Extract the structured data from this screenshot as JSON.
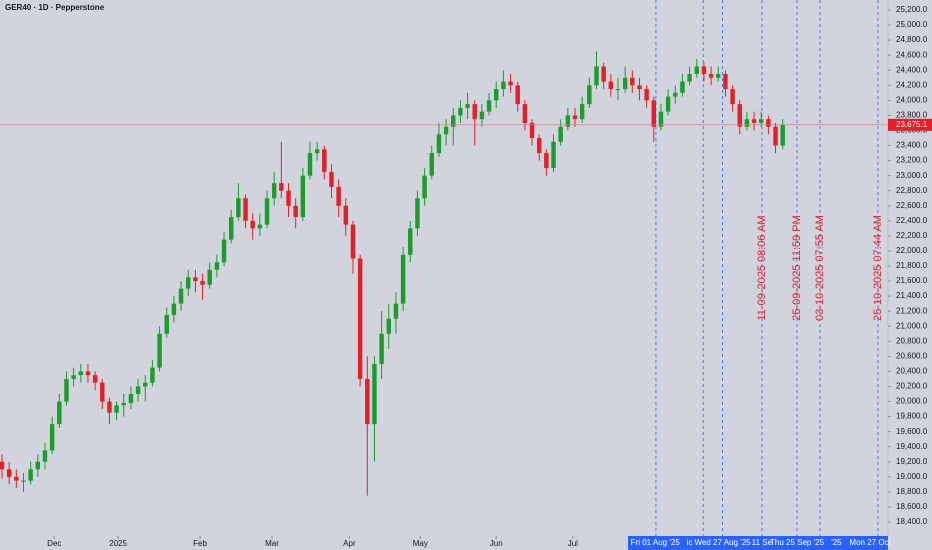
{
  "chart_data": {
    "type": "candlestick",
    "title": "GER40 · 1D · Pepperstone",
    "up_color": "#1c9b2f",
    "down_color": "#e3202a",
    "xlim": [
      -0.28,
      123.7
    ],
    "ylim": [
      18214,
      25333
    ],
    "xticks": [
      {
        "value": 7.3,
        "label": "Dec"
      },
      {
        "value": 16.2,
        "label": "2025"
      },
      {
        "value": 27.65,
        "label": "Feb"
      },
      {
        "value": 37.7,
        "label": "Mar"
      },
      {
        "value": 48.5,
        "label": "Apr"
      },
      {
        "value": 58.4,
        "label": "May"
      },
      {
        "value": 69,
        "label": "Jun"
      },
      {
        "value": 79.7,
        "label": "Jul"
      }
    ],
    "yticks": [
      {
        "value": 25200,
        "label": "25,200.0"
      },
      {
        "value": 25000,
        "label": "25,000.0"
      },
      {
        "value": 24800,
        "label": "24,800.0"
      },
      {
        "value": 24600,
        "label": "24,600.0"
      },
      {
        "value": 24400,
        "label": "24,400.0"
      },
      {
        "value": 24200,
        "label": "24,200.0"
      },
      {
        "value": 24000,
        "label": "24,000.0"
      },
      {
        "value": 23800,
        "label": "23,800.0"
      },
      {
        "value": 23600,
        "label": "23,600.0"
      },
      {
        "value": 23400,
        "label": "23,400.0"
      },
      {
        "value": 23200,
        "label": "23,200.0"
      },
      {
        "value": 23000,
        "label": "23,000.0"
      },
      {
        "value": 22800,
        "label": "22,800.0"
      },
      {
        "value": 22600,
        "label": "22,600.0"
      },
      {
        "value": 22400,
        "label": "22,400.0"
      },
      {
        "value": 22200,
        "label": "22,200.0"
      },
      {
        "value": 22000,
        "label": "22,000.0"
      },
      {
        "value": 21800,
        "label": "21,800.0"
      },
      {
        "value": 21600,
        "label": "21,600.0"
      },
      {
        "value": 21400,
        "label": "21,400.0"
      },
      {
        "value": 21200,
        "label": "21,200.0"
      },
      {
        "value": 21000,
        "label": "21,000.0"
      },
      {
        "value": 20800,
        "label": "20,800.0"
      },
      {
        "value": 20600,
        "label": "20,600.0"
      },
      {
        "value": 20400,
        "label": "20,400.0"
      },
      {
        "value": 20200,
        "label": "20,200.0"
      },
      {
        "value": 20000,
        "label": "20,000.0"
      },
      {
        "value": 19800,
        "label": "19,800.0"
      },
      {
        "value": 19600,
        "label": "19,600.0"
      },
      {
        "value": 19400,
        "label": "19,400.0"
      },
      {
        "value": 19200,
        "label": "19,200.0"
      },
      {
        "value": 19000,
        "label": "19,000.0"
      },
      {
        "value": 18800,
        "label": "18,800.0"
      },
      {
        "value": 18600,
        "label": "18,600.0"
      },
      {
        "value": 18400,
        "label": "18,400.0"
      }
    ],
    "price_line": {
      "value": 23675.1,
      "label": "23,675.1"
    },
    "vlines": [
      91.3,
      97.9,
      100.6,
      106.1,
      111.0,
      114.2,
      122.3
    ],
    "markers": [
      {
        "value": 106.1,
        "label": "11-09-2025 08:06 AM"
      },
      {
        "value": 111.0,
        "label": "25-09-2025 11:59 PM"
      },
      {
        "value": 114.2,
        "label": "03-10-2025 07:55 AM"
      },
      {
        "value": 122.3,
        "label": "25-10-2025 07:44 AM"
      }
    ],
    "time_labels": [
      {
        "value": 91.2,
        "label": "Fri 01 Aug '25"
      },
      {
        "value": 96.0,
        "label": "ic"
      },
      {
        "value": 100.6,
        "label": "Wed 27 Aug '25"
      },
      {
        "value": 106.1,
        "label": "11 Se"
      },
      {
        "value": 111.0,
        "label": "Thu 25 Sep '25"
      },
      {
        "value": 116.5,
        "label": "'25"
      },
      {
        "value": 121.2,
        "label": "Mon 27 Oct"
      }
    ],
    "candles": [
      [
        19200,
        19300,
        18980,
        19100
      ],
      [
        19100,
        19200,
        18900,
        19000
      ],
      [
        19000,
        19100,
        18850,
        18950
      ],
      [
        18950,
        19050,
        18800,
        18950
      ],
      [
        18950,
        19200,
        18900,
        19100
      ],
      [
        19100,
        19300,
        19000,
        19200
      ],
      [
        19200,
        19450,
        19100,
        19350
      ],
      [
        19350,
        19800,
        19300,
        19700
      ],
      [
        19700,
        20100,
        19650,
        20000
      ],
      [
        20000,
        20400,
        19950,
        20300
      ],
      [
        20300,
        20450,
        20200,
        20350
      ],
      [
        20350,
        20500,
        20250,
        20400
      ],
      [
        20400,
        20500,
        20250,
        20350
      ],
      [
        20350,
        20400,
        20150,
        20250
      ],
      [
        20250,
        20300,
        19900,
        20000
      ],
      [
        20000,
        20050,
        19700,
        19850
      ],
      [
        19850,
        20000,
        19750,
        19950
      ],
      [
        19950,
        20100,
        19800,
        19980
      ],
      [
        19980,
        20200,
        19900,
        20100
      ],
      [
        20100,
        20300,
        20000,
        20200
      ],
      [
        20200,
        20350,
        20000,
        20250
      ],
      [
        20250,
        20550,
        20200,
        20450
      ],
      [
        20450,
        21000,
        20400,
        20900
      ],
      [
        20900,
        21250,
        20850,
        21150
      ],
      [
        21150,
        21400,
        21050,
        21300
      ],
      [
        21300,
        21600,
        21200,
        21500
      ],
      [
        21500,
        21750,
        21400,
        21650
      ],
      [
        21650,
        21750,
        21450,
        21600
      ],
      [
        21600,
        21700,
        21350,
        21550
      ],
      [
        21550,
        21850,
        21500,
        21750
      ],
      [
        21750,
        21950,
        21650,
        21850
      ],
      [
        21850,
        22250,
        21800,
        22150
      ],
      [
        22150,
        22550,
        22100,
        22450
      ],
      [
        22450,
        22900,
        22400,
        22700
      ],
      [
        22700,
        22750,
        22300,
        22400
      ],
      [
        22400,
        22500,
        22150,
        22300
      ],
      [
        22300,
        22500,
        22200,
        22350
      ],
      [
        22350,
        22800,
        22300,
        22700
      ],
      [
        22700,
        23050,
        22600,
        22900
      ],
      [
        22900,
        23450,
        22700,
        22800
      ],
      [
        22800,
        22900,
        22450,
        22600
      ],
      [
        22600,
        22700,
        22300,
        22450
      ],
      [
        22450,
        23100,
        22400,
        23000
      ],
      [
        23000,
        23450,
        22950,
        23300
      ],
      [
        23300,
        23450,
        23200,
        23350
      ],
      [
        23350,
        23400,
        22950,
        23050
      ],
      [
        23050,
        23150,
        22700,
        22850
      ],
      [
        22850,
        22950,
        22450,
        22600
      ],
      [
        22600,
        22700,
        22200,
        22350
      ],
      [
        22350,
        22400,
        21700,
        21900
      ],
      [
        21900,
        21950,
        20200,
        20300
      ],
      [
        20300,
        20600,
        18750,
        19700
      ],
      [
        19700,
        20600,
        19200,
        20500
      ],
      [
        20500,
        21200,
        20300,
        20900
      ],
      [
        20900,
        21300,
        20700,
        21100
      ],
      [
        21100,
        21450,
        20900,
        21300
      ],
      [
        21300,
        22050,
        21200,
        21950
      ],
      [
        21950,
        22400,
        21850,
        22300
      ],
      [
        22300,
        22800,
        22200,
        22700
      ],
      [
        22700,
        23100,
        22600,
        23000
      ],
      [
        23000,
        23400,
        22950,
        23300
      ],
      [
        23300,
        23700,
        23250,
        23550
      ],
      [
        23550,
        23750,
        23400,
        23650
      ],
      [
        23650,
        23900,
        23400,
        23800
      ],
      [
        23800,
        24000,
        23700,
        23900
      ],
      [
        23900,
        24100,
        23750,
        23950
      ],
      [
        23950,
        24000,
        23400,
        23750
      ],
      [
        23750,
        23950,
        23650,
        23850
      ],
      [
        23850,
        24100,
        23800,
        24000
      ],
      [
        24000,
        24250,
        23900,
        24150
      ],
      [
        24150,
        24400,
        24050,
        24250
      ],
      [
        24250,
        24350,
        24100,
        24200
      ],
      [
        24200,
        24250,
        23850,
        23950
      ],
      [
        23950,
        24000,
        23600,
        23700
      ],
      [
        23700,
        23750,
        23400,
        23500
      ],
      [
        23500,
        23550,
        23200,
        23300
      ],
      [
        23300,
        23350,
        23000,
        23100
      ],
      [
        23100,
        23550,
        23050,
        23450
      ],
      [
        23450,
        23750,
        23400,
        23650
      ],
      [
        23650,
        23900,
        23600,
        23800
      ],
      [
        23800,
        23900,
        23650,
        23750
      ],
      [
        23750,
        24050,
        23700,
        23950
      ],
      [
        23950,
        24300,
        23900,
        24200
      ],
      [
        24200,
        24650,
        24150,
        24450
      ],
      [
        24450,
        24500,
        24150,
        24250
      ],
      [
        24250,
        24350,
        24050,
        24150
      ],
      [
        24150,
        24300,
        24000,
        24150
      ],
      [
        24150,
        24450,
        24100,
        24300
      ],
      [
        24300,
        24400,
        24100,
        24200
      ],
      [
        24200,
        24300,
        24000,
        24150
      ],
      [
        24150,
        24200,
        23900,
        24000
      ],
      [
        24000,
        24050,
        23450,
        23650
      ],
      [
        23650,
        23950,
        23600,
        23850
      ],
      [
        23850,
        24150,
        23800,
        24050
      ],
      [
        24050,
        24200,
        23950,
        24100
      ],
      [
        24100,
        24350,
        24050,
        24250
      ],
      [
        24250,
        24450,
        24200,
        24350
      ],
      [
        24350,
        24550,
        24300,
        24450
      ],
      [
        24450,
        24500,
        24250,
        24350
      ],
      [
        24350,
        24450,
        24200,
        24300
      ],
      [
        24300,
        24450,
        24250,
        24350
      ],
      [
        24350,
        24400,
        24050,
        24150
      ],
      [
        24150,
        24200,
        23850,
        23950
      ],
      [
        23950,
        24000,
        23550,
        23650
      ],
      [
        23650,
        23850,
        23600,
        23750
      ],
      [
        23750,
        23850,
        23600,
        23700
      ],
      [
        23700,
        23850,
        23650,
        23750
      ],
      [
        23750,
        23800,
        23550,
        23650
      ],
      [
        23650,
        23700,
        23300,
        23400
      ],
      [
        23400,
        23750,
        23350,
        23675.1
      ]
    ]
  }
}
